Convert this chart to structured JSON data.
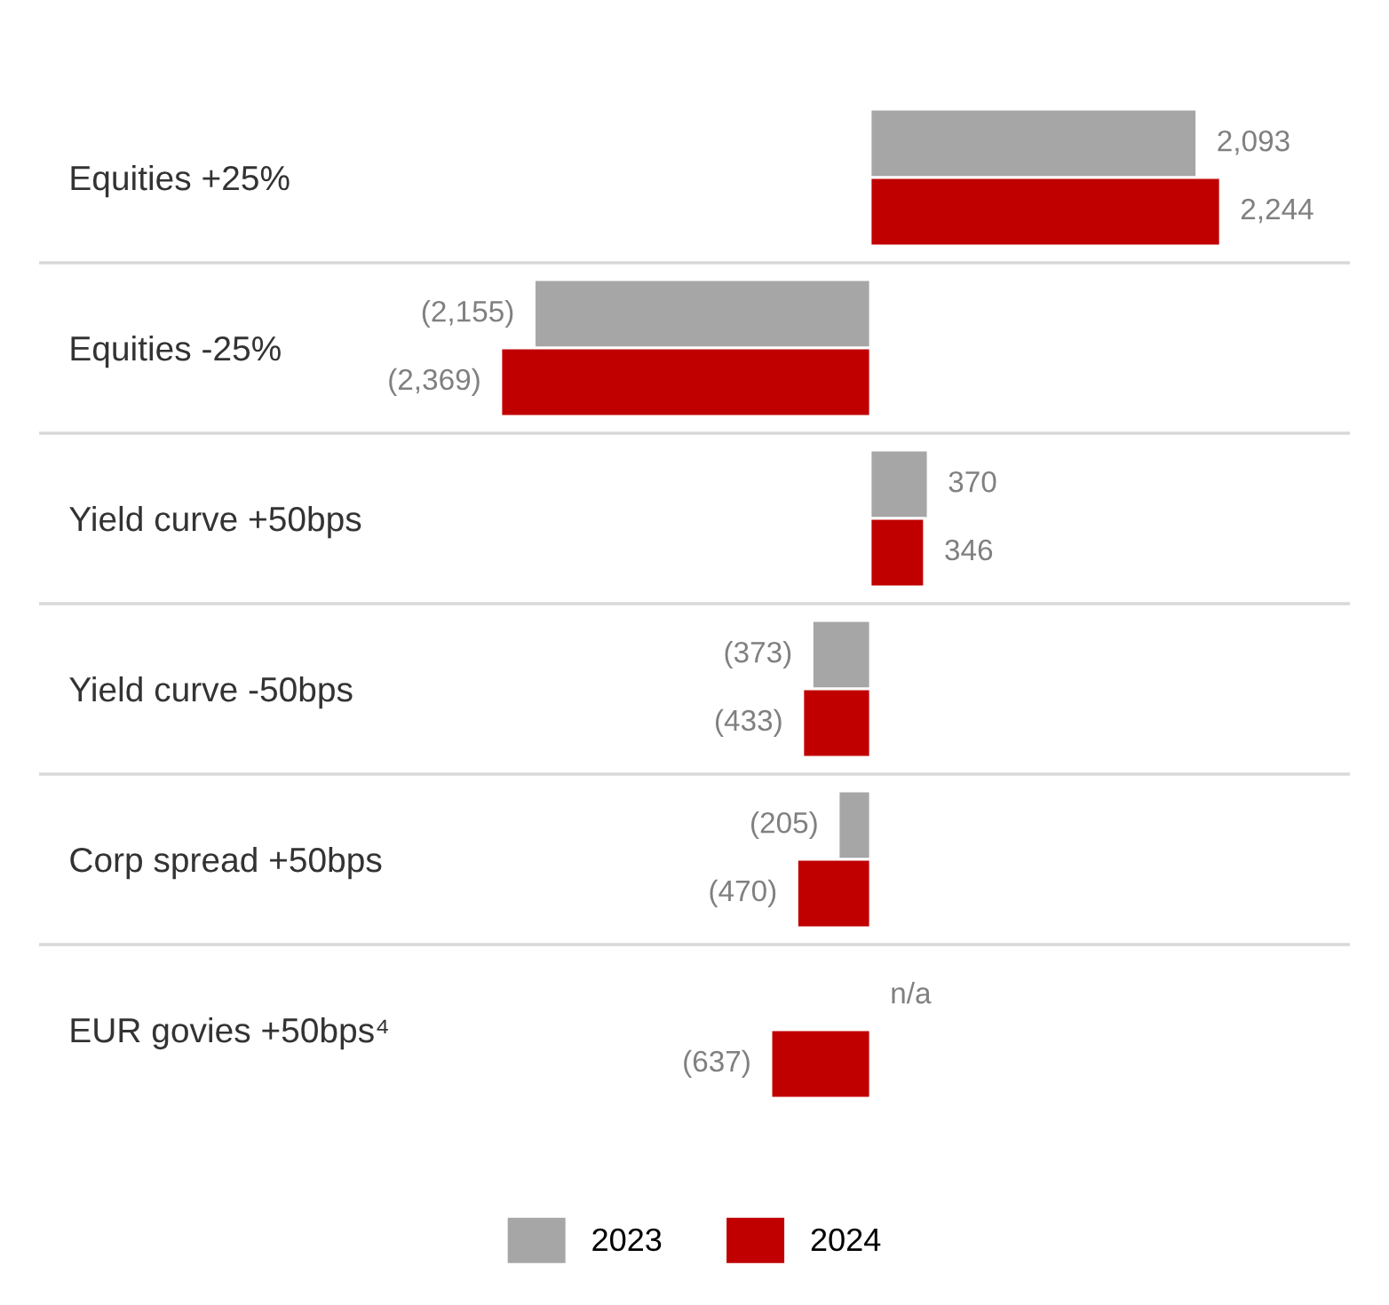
{
  "chart_data": {
    "type": "bar",
    "orientation": "horizontal",
    "categories": [
      "Equities +25%",
      "Equities -25%",
      "Yield curve +50bps",
      "Yield curve -50bps",
      "Corp spread +50bps",
      "EUR govies +50bps⁴"
    ],
    "series": [
      {
        "name": "2023",
        "color": "#a6a6a6",
        "values": [
          2093,
          -2155,
          370,
          -373,
          -205,
          null
        ],
        "value_labels": [
          "2,093",
          "(2,155)",
          "370",
          "(373)",
          "(205)",
          "n/a"
        ]
      },
      {
        "name": "2024",
        "color": "#c00000",
        "values": [
          2244,
          -2369,
          346,
          -433,
          -470,
          -637
        ],
        "value_labels": [
          "2,244",
          "(2,369)",
          "346",
          "(433)",
          "(470)",
          "(637)"
        ]
      }
    ],
    "grid": "y",
    "legend": "bottom"
  }
}
